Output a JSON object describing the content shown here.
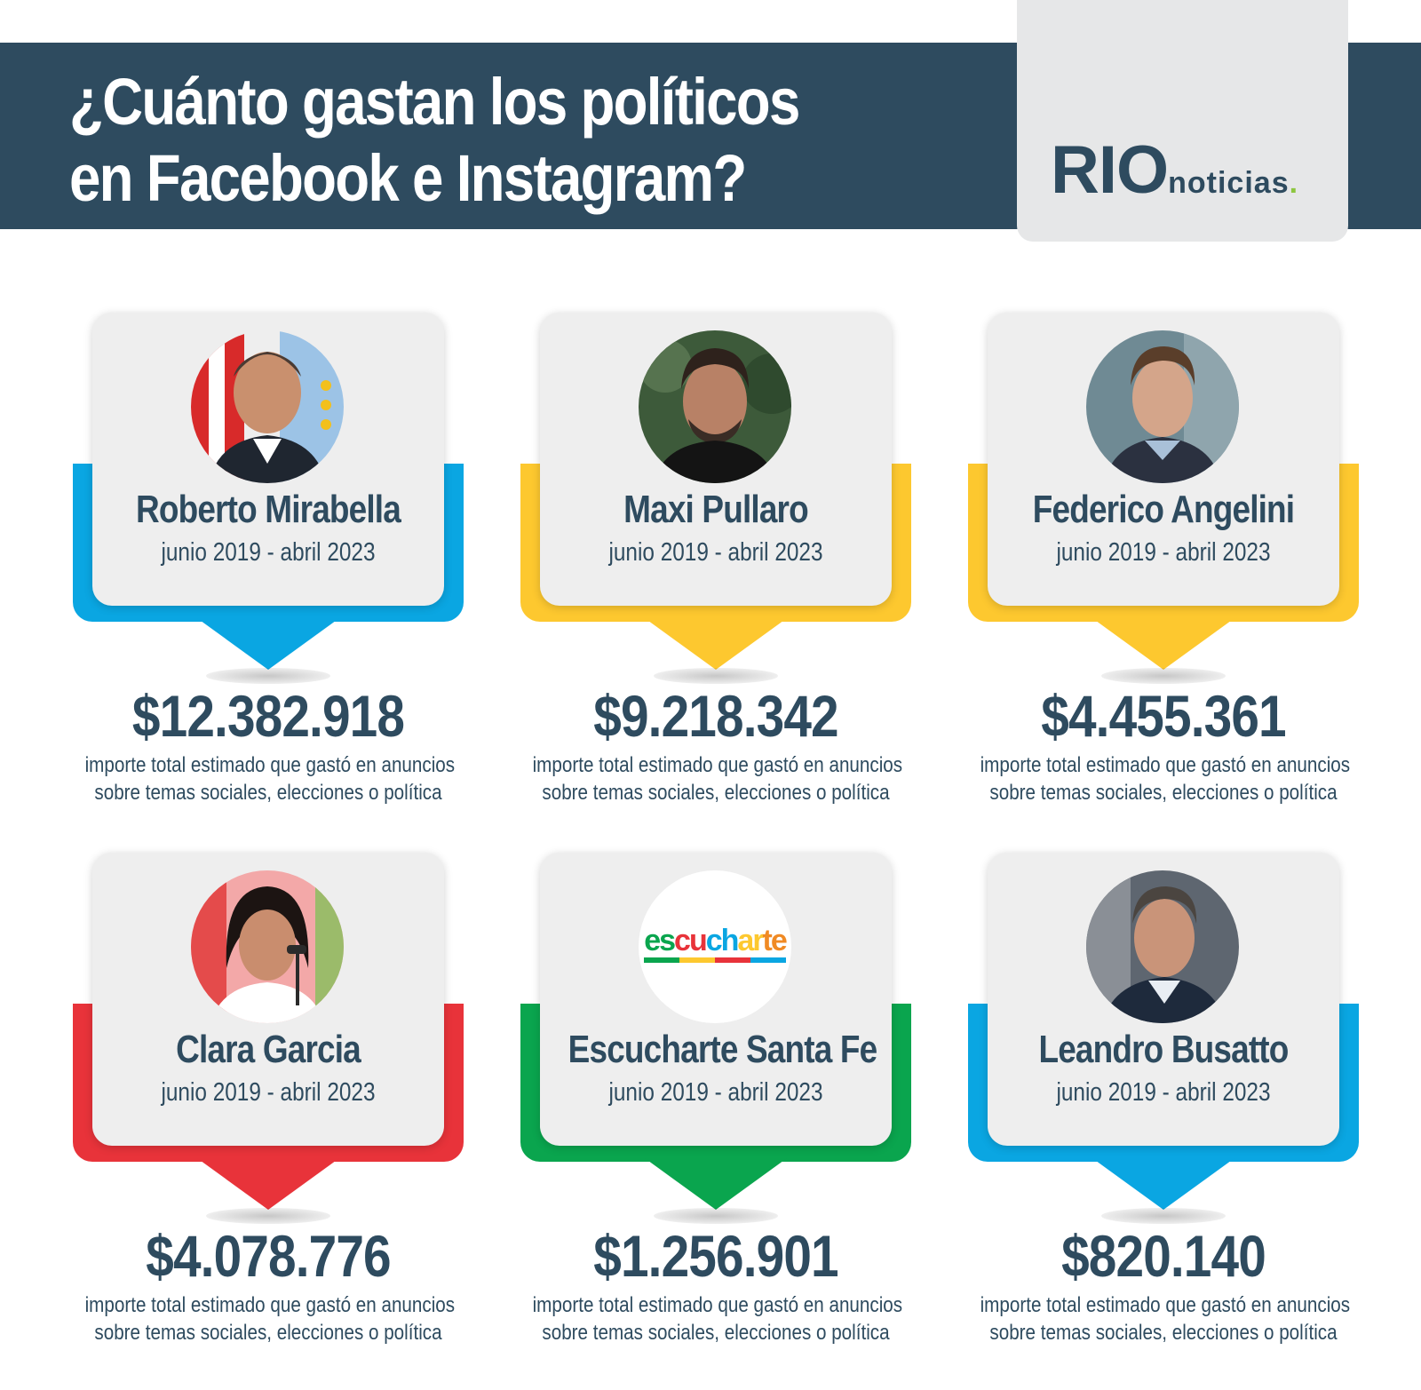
{
  "header": {
    "title_line1": "¿Cuánto gastan los políticos",
    "title_line2": "en Facebook e Instagram?"
  },
  "logo": {
    "rio": "RIO",
    "noticias": "noticias",
    "dot": ".",
    "color_primary": "#2e4b5f",
    "color_dot": "#8dc63f"
  },
  "cards": [
    {
      "name": "Roberto Mirabella",
      "period": "junio 2019 - abril 2023",
      "amount": "$12.382.918",
      "desc_line1": "importe total estimado que gastó en anuncios",
      "desc_line2": "sobre temas sociales, elecciones o política",
      "accent": "#0aa6e2",
      "avatar_icon": "person-photo"
    },
    {
      "name": "Maxi Pullaro",
      "period": "junio 2019 - abril 2023",
      "amount": "$9.218.342",
      "desc_line1": "importe total estimado que gastó en anuncios",
      "desc_line2": "sobre temas sociales, elecciones o política",
      "accent": "#fdc82f",
      "avatar_icon": "person-photo"
    },
    {
      "name": "Federico Angelini",
      "period": "junio 2019 - abril 2023",
      "amount": "$4.455.361",
      "desc_line1": "importe total estimado que gastó en anuncios",
      "desc_line2": "sobre temas sociales, elecciones o política",
      "accent": "#fdc82f",
      "avatar_icon": "person-photo"
    },
    {
      "name": "Clara Garcia",
      "period": "junio 2019 - abril 2023",
      "amount": "$4.078.776",
      "desc_line1": "importe total estimado que gastó en anuncios",
      "desc_line2": "sobre temas sociales, elecciones o política",
      "accent": "#e8333a",
      "avatar_icon": "person-photo"
    },
    {
      "name": "Escucharte Santa Fe",
      "period": "junio 2019 - abril 2023",
      "amount": "$1.256.901",
      "desc_line1": "importe total estimado que gastó en anuncios",
      "desc_line2": "sobre temas sociales, elecciones o política",
      "accent": "#0aa54e",
      "avatar_icon": "escucharte-logo",
      "logo_text": "escucharte"
    },
    {
      "name": "Leandro Busatto",
      "period": "junio 2019 - abril 2023",
      "amount": "$820.140",
      "desc_line1": "importe total estimado que gastó en anuncios",
      "desc_line2": "sobre temas sociales, elecciones o política",
      "accent": "#0aa6e2",
      "avatar_icon": "person-photo"
    }
  ]
}
